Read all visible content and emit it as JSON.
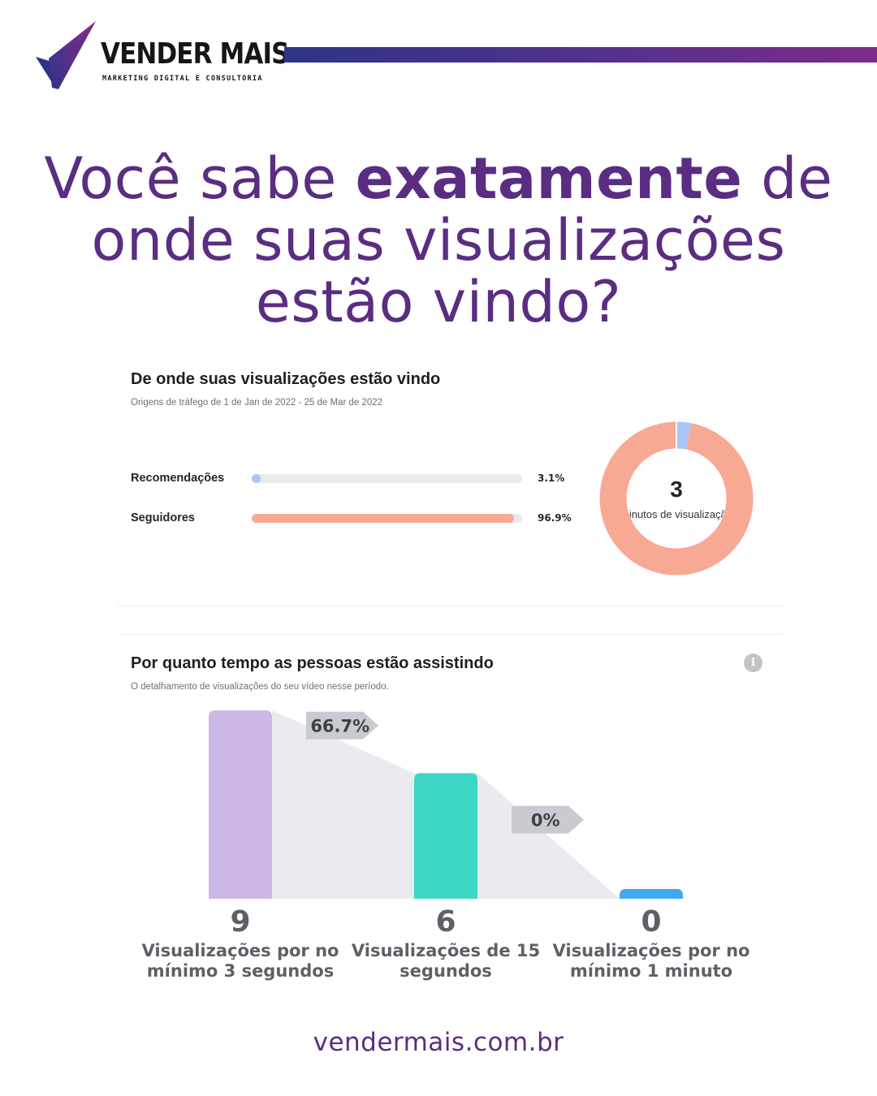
{
  "brand": {
    "name": "VENDER MAIS",
    "tagline": "MARKETING DIGITAL E CONSULTORIA",
    "colors": {
      "purple": "#5a2d82",
      "bar_start": "#2d3487",
      "bar_end": "#7d2b8c"
    }
  },
  "headline": {
    "part1": "Você sabe ",
    "bold": "exatamente",
    "part2": " de",
    "line2": "onde suas visualizações",
    "line3": "estão vindo?"
  },
  "traffic_card": {
    "title": "De onde suas visualizações estão vindo",
    "subtitle": "Origens de tráfego de 1 de Jan de 2022 - 25 de Mar de 2022",
    "sources": [
      {
        "label": "Recomendações",
        "value": "3.1%",
        "fraction": 0.031,
        "color": "#a9c7f5"
      },
      {
        "label": "Seguidores",
        "value": "96.9%",
        "fraction": 0.969,
        "color": "#f7a994"
      }
    ],
    "donut": {
      "total": "3",
      "caption": "minutos de visualização"
    }
  },
  "retention_card": {
    "title": "Por quanto tempo as pessoas estão assistindo",
    "subtitle": "O detalhamento de visualizações do seu vídeo nesse período.",
    "info_icon": "info-icon"
  },
  "chart_data": {
    "type": "bar",
    "title": "Por quanto tempo as pessoas estão assistindo",
    "categories": [
      "Visualizações por no mínimo 3 segundos",
      "Visualizações de 15 segundos",
      "Visualizações por no mínimo 1 minuto"
    ],
    "values": [
      9,
      6,
      0
    ],
    "colors": [
      "#cbb8e6",
      "#3dd6c5",
      "#3fa9f1"
    ],
    "transitions": [
      "66.7%",
      "0%"
    ],
    "ylim": [
      0,
      9
    ]
  },
  "footer": {
    "url": "vendermais.com.br"
  }
}
